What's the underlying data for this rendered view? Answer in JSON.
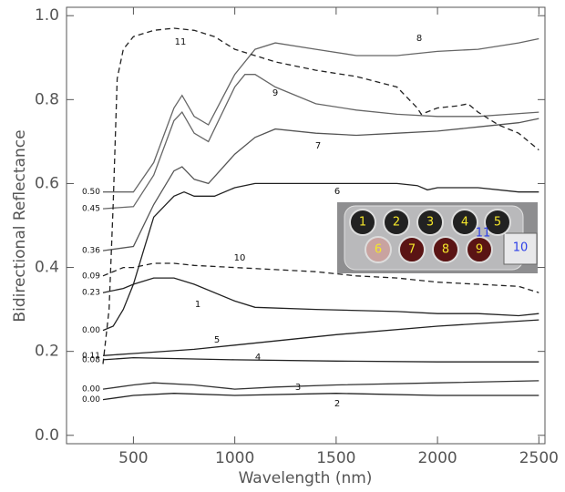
{
  "chart_data": {
    "type": "line",
    "x_label": "Wavelength (nm)",
    "y_label": "Bidirectional Reflectance",
    "xlim": [
      170,
      2530
    ],
    "ylim": [
      -0.02,
      1.02
    ],
    "xticks": [
      500,
      1000,
      1500,
      2000,
      2500
    ],
    "yticks": [
      {
        "value": 0,
        "label": "0.0"
      },
      {
        "value": 0.2,
        "label": "0.2"
      },
      {
        "value": 0.4,
        "label": "0.4"
      },
      {
        "value": 0.6,
        "label": "0.6"
      },
      {
        "value": 0.8,
        "label": "0.8"
      },
      {
        "value": 1,
        "label": "1.0"
      }
    ],
    "series": [
      {
        "name": "8",
        "color": "#666666",
        "dash": false,
        "offset_label": "0.50",
        "x": [
          350,
          500,
          600,
          700,
          740,
          800,
          870,
          1000,
          1100,
          1200,
          1400,
          1600,
          1800,
          2000,
          2200,
          2400,
          2500
        ],
        "values": [
          0.58,
          0.58,
          0.65,
          0.78,
          0.81,
          0.76,
          0.74,
          0.86,
          0.92,
          0.935,
          0.92,
          0.905,
          0.905,
          0.915,
          0.92,
          0.935,
          0.945
        ]
      },
      {
        "name": "9",
        "color": "#666666",
        "dash": false,
        "offset_label": "0.45",
        "x": [
          350,
          500,
          600,
          700,
          740,
          800,
          870,
          1000,
          1050,
          1100,
          1200,
          1400,
          1600,
          1800,
          2000,
          2200,
          2500
        ],
        "values": [
          0.54,
          0.545,
          0.62,
          0.75,
          0.77,
          0.72,
          0.7,
          0.83,
          0.86,
          0.86,
          0.83,
          0.79,
          0.775,
          0.765,
          0.76,
          0.76,
          0.77
        ]
      },
      {
        "name": "7",
        "color": "#555555",
        "dash": false,
        "offset_label": "0.36",
        "x": [
          350,
          500,
          600,
          700,
          740,
          800,
          870,
          1000,
          1100,
          1200,
          1400,
          1600,
          1800,
          2000,
          2200,
          2400,
          2500
        ],
        "values": [
          0.44,
          0.45,
          0.55,
          0.63,
          0.64,
          0.61,
          0.6,
          0.67,
          0.71,
          0.73,
          0.72,
          0.715,
          0.72,
          0.725,
          0.735,
          0.745,
          0.755
        ]
      },
      {
        "name": "10",
        "color": "#222222",
        "dash": true,
        "offset_label": "0.09",
        "x": [
          350,
          450,
          500,
          600,
          700,
          800,
          1000,
          1200,
          1400,
          1600,
          1800,
          2000,
          2200,
          2400,
          2500
        ],
        "values": [
          0.38,
          0.4,
          0.4,
          0.41,
          0.41,
          0.405,
          0.4,
          0.395,
          0.39,
          0.38,
          0.375,
          0.365,
          0.36,
          0.355,
          0.34
        ]
      },
      {
        "name": "1",
        "color": "#222222",
        "dash": false,
        "offset_label": "0.23",
        "x": [
          350,
          450,
          500,
          600,
          700,
          800,
          1000,
          1100,
          1400,
          1800,
          2000,
          2200,
          2400,
          2500
        ],
        "values": [
          0.34,
          0.35,
          0.36,
          0.375,
          0.375,
          0.36,
          0.32,
          0.305,
          0.3,
          0.295,
          0.29,
          0.29,
          0.285,
          0.29
        ]
      },
      {
        "name": "6",
        "color": "#222222",
        "dash": false,
        "offset_label": "0.00",
        "x": [
          350,
          400,
          450,
          500,
          550,
          600,
          700,
          750,
          800,
          900,
          1000,
          1100,
          1400,
          1800,
          1900,
          1950,
          2000,
          2200,
          2400,
          2500
        ],
        "values": [
          0.25,
          0.26,
          0.3,
          0.36,
          0.44,
          0.52,
          0.57,
          0.58,
          0.57,
          0.57,
          0.59,
          0.6,
          0.6,
          0.6,
          0.595,
          0.585,
          0.59,
          0.59,
          0.58,
          0.58
        ]
      },
      {
        "name": "5",
        "color": "#222222",
        "dash": false,
        "offset_label": "0.11",
        "x": [
          350,
          500,
          800,
          1000,
          1500,
          2000,
          2500
        ],
        "values": [
          0.19,
          0.195,
          0.205,
          0.215,
          0.24,
          0.26,
          0.275
        ]
      },
      {
        "name": "4",
        "color": "#222222",
        "dash": false,
        "offset_label": "0.08",
        "x": [
          350,
          500,
          1000,
          1500,
          2000,
          2500
        ],
        "values": [
          0.18,
          0.185,
          0.18,
          0.177,
          0.175,
          0.175
        ]
      },
      {
        "name": "3",
        "color": "#333333",
        "dash": false,
        "offset_label": "0.00",
        "x": [
          350,
          500,
          600,
          800,
          1000,
          1200,
          1500,
          2000,
          2500
        ],
        "values": [
          0.11,
          0.12,
          0.125,
          0.12,
          0.11,
          0.115,
          0.12,
          0.125,
          0.13
        ]
      },
      {
        "name": "2",
        "color": "#222222",
        "dash": false,
        "offset_label": "0.00",
        "x": [
          350,
          500,
          700,
          1000,
          1500,
          2000,
          2500
        ],
        "values": [
          0.085,
          0.095,
          0.1,
          0.095,
          0.1,
          0.095,
          0.095
        ]
      },
      {
        "name": "11",
        "color": "#222222",
        "dash": true,
        "x": [
          350,
          380,
          400,
          420,
          450,
          500,
          600,
          700,
          800,
          900,
          1000,
          1200,
          1400,
          1600,
          1800,
          1900,
          1920,
          2000,
          2100,
          2150,
          2200,
          2300,
          2400,
          2500
        ],
        "values": [
          0.17,
          0.3,
          0.55,
          0.85,
          0.92,
          0.95,
          0.965,
          0.97,
          0.965,
          0.95,
          0.92,
          0.89,
          0.87,
          0.855,
          0.83,
          0.78,
          0.765,
          0.78,
          0.785,
          0.79,
          0.77,
          0.74,
          0.72,
          0.68
        ]
      }
    ],
    "inset_labels": [
      "1",
      "2",
      "3",
      "4",
      "5",
      "6",
      "7",
      "8",
      "9",
      "10",
      "11"
    ]
  }
}
